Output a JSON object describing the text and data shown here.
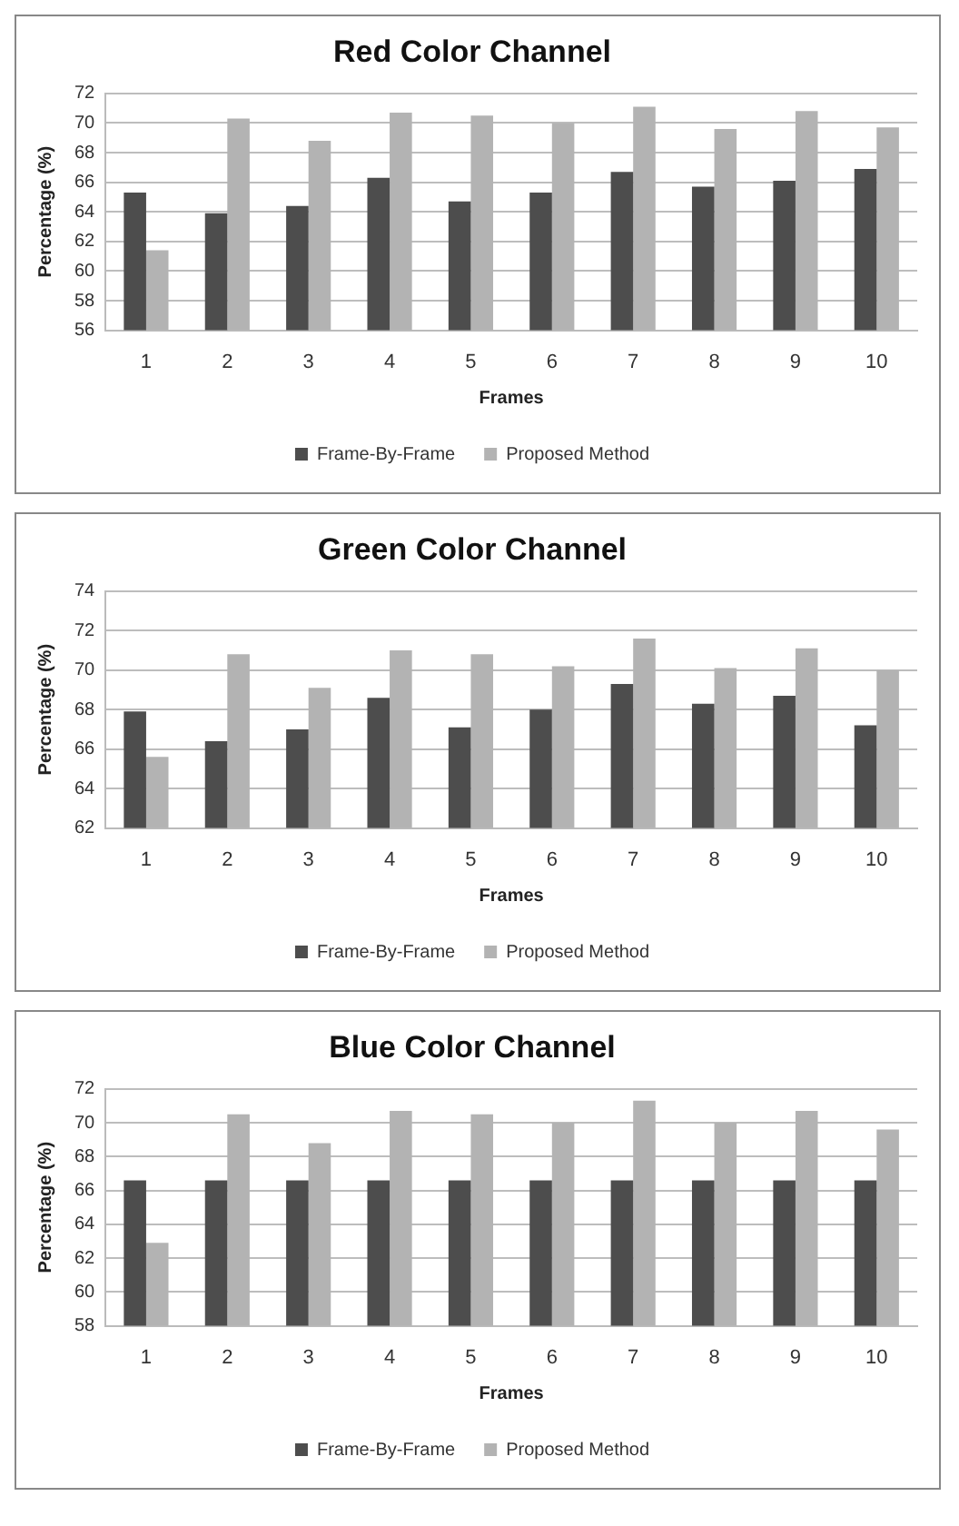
{
  "chart_data": [
    {
      "type": "bar",
      "title": "Red Color Channel",
      "xlabel": "Frames",
      "ylabel": "Percentage (%)",
      "categories": [
        "1",
        "2",
        "3",
        "4",
        "5",
        "6",
        "7",
        "8",
        "9",
        "10"
      ],
      "series": [
        {
          "name": "Frame-By-Frame",
          "color": "#4d4d4d",
          "values": [
            65.3,
            63.9,
            64.4,
            66.3,
            64.7,
            65.3,
            66.7,
            65.7,
            66.1,
            66.9
          ]
        },
        {
          "name": "Proposed Method",
          "color": "#b3b3b3",
          "values": [
            61.4,
            70.3,
            68.8,
            70.7,
            70.5,
            70.0,
            71.1,
            69.6,
            70.8,
            69.7
          ]
        }
      ],
      "ylim": [
        56,
        72
      ],
      "yticks": [
        56,
        58,
        60,
        62,
        64,
        66,
        68,
        70,
        72
      ],
      "grid": "y",
      "legend": "bottom"
    },
    {
      "type": "bar",
      "title": "Green Color Channel",
      "xlabel": "Frames",
      "ylabel": "Percentage (%)",
      "categories": [
        "1",
        "2",
        "3",
        "4",
        "5",
        "6",
        "7",
        "8",
        "9",
        "10"
      ],
      "series": [
        {
          "name": "Frame-By-Frame",
          "color": "#4d4d4d",
          "values": [
            67.9,
            66.4,
            67.0,
            68.6,
            67.1,
            68.0,
            69.3,
            68.3,
            68.7,
            67.2
          ]
        },
        {
          "name": "Proposed Method",
          "color": "#b3b3b3",
          "values": [
            65.6,
            70.8,
            69.1,
            71.0,
            70.8,
            70.2,
            71.6,
            70.1,
            71.1,
            70.0
          ]
        }
      ],
      "ylim": [
        62,
        74
      ],
      "yticks": [
        62,
        64,
        66,
        68,
        70,
        72,
        74
      ],
      "grid": "y",
      "legend": "bottom"
    },
    {
      "type": "bar",
      "title": "Blue Color Channel",
      "xlabel": "Frames",
      "ylabel": "Percentage (%)",
      "categories": [
        "1",
        "2",
        "3",
        "4",
        "5",
        "6",
        "7",
        "8",
        "9",
        "10"
      ],
      "series": [
        {
          "name": "Frame-By-Frame",
          "color": "#4d4d4d",
          "values": [
            66.6,
            66.6,
            66.6,
            66.6,
            66.6,
            66.6,
            66.6,
            66.6,
            66.6,
            66.6
          ]
        },
        {
          "name": "Proposed Method",
          "color": "#b3b3b3",
          "values": [
            62.9,
            70.5,
            68.8,
            70.7,
            70.5,
            70.0,
            71.3,
            70.0,
            70.7,
            69.6
          ]
        }
      ],
      "ylim": [
        58,
        72
      ],
      "yticks": [
        58,
        60,
        62,
        64,
        66,
        68,
        70,
        72
      ],
      "grid": "y",
      "legend": "bottom"
    }
  ]
}
